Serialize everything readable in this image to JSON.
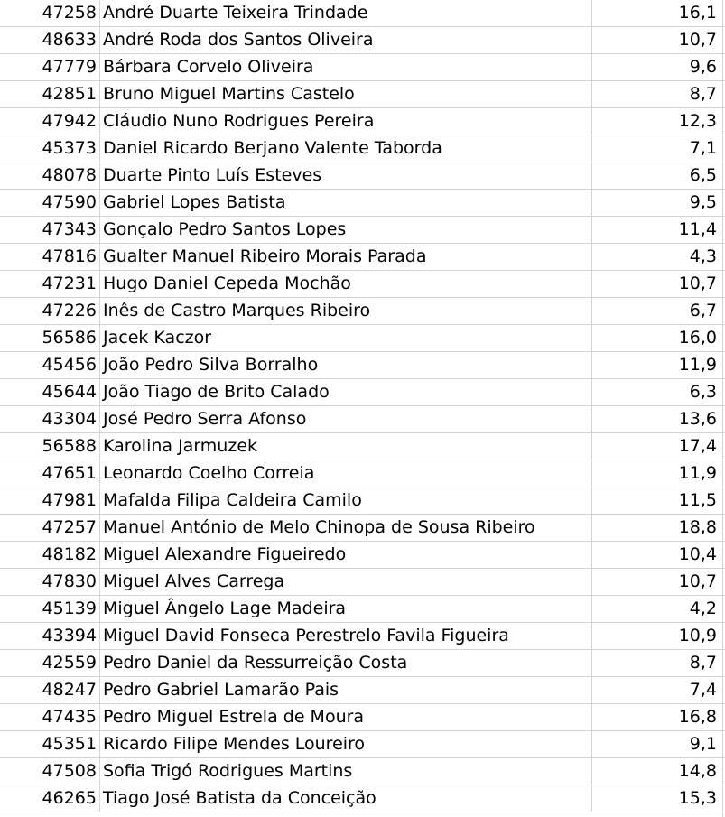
{
  "rows": [
    {
      "id": "47258",
      "name": "André Duarte Teixeira Trindade",
      "grade": "16,1"
    },
    {
      "id": "48633",
      "name": "André Roda dos Santos Oliveira",
      "grade": "10,7"
    },
    {
      "id": "47779",
      "name": "Bárbara Corvelo Oliveira",
      "grade": "9,6"
    },
    {
      "id": "42851",
      "name": "Bruno Miguel Martins Castelo",
      "grade": "8,7"
    },
    {
      "id": "47942",
      "name": "Cláudio Nuno Rodrigues Pereira",
      "grade": "12,3"
    },
    {
      "id": "45373",
      "name": "Daniel Ricardo Berjano Valente Taborda",
      "grade": "7,1"
    },
    {
      "id": "48078",
      "name": "Duarte Pinto Luís Esteves",
      "grade": "6,5"
    },
    {
      "id": "47590",
      "name": "Gabriel Lopes Batista",
      "grade": "9,5"
    },
    {
      "id": "47343",
      "name": "Gonçalo Pedro Santos Lopes",
      "grade": "11,4"
    },
    {
      "id": "47816",
      "name": "Gualter Manuel Ribeiro Morais Parada",
      "grade": "4,3"
    },
    {
      "id": "47231",
      "name": "Hugo Daniel Cepeda Mochão",
      "grade": "10,7"
    },
    {
      "id": "47226",
      "name": "Inês de Castro Marques Ribeiro",
      "grade": "6,7"
    },
    {
      "id": "56586",
      "name": "Jacek Kaczor",
      "grade": "16,0"
    },
    {
      "id": "45456",
      "name": "João Pedro Silva Borralho",
      "grade": "11,9"
    },
    {
      "id": "45644",
      "name": "João Tiago de Brito Calado",
      "grade": "6,3"
    },
    {
      "id": "43304",
      "name": "José Pedro Serra Afonso",
      "grade": "13,6"
    },
    {
      "id": "56588",
      "name": "Karolina Jarmuzek",
      "grade": "17,4"
    },
    {
      "id": "47651",
      "name": "Leonardo Coelho Correia",
      "grade": "11,9"
    },
    {
      "id": "47981",
      "name": "Mafalda Filipa Caldeira Camilo",
      "grade": "11,5"
    },
    {
      "id": "47257",
      "name": "Manuel António de Melo Chinopa de Sousa Ribeiro",
      "grade": "18,8"
    },
    {
      "id": "48182",
      "name": "Miguel Alexandre Figueiredo",
      "grade": "10,4"
    },
    {
      "id": "47830",
      "name": "Miguel Alves Carrega",
      "grade": "10,7"
    },
    {
      "id": "45139",
      "name": "Miguel Ângelo Lage Madeira",
      "grade": "4,2"
    },
    {
      "id": "43394",
      "name": "Miguel David Fonseca Perestrelo Favila Figueira",
      "grade": "10,9"
    },
    {
      "id": "42559",
      "name": "Pedro Daniel da Ressurreição Costa",
      "grade": "8,7"
    },
    {
      "id": "48247",
      "name": "Pedro Gabriel Lamarão Pais",
      "grade": "7,4"
    },
    {
      "id": "47435",
      "name": "Pedro Miguel Estrela de Moura",
      "grade": "16,8"
    },
    {
      "id": "45351",
      "name": "Ricardo Filipe Mendes Loureiro",
      "grade": "9,1"
    },
    {
      "id": "47508",
      "name": "Sofia Trigó Rodrigues Martins",
      "grade": "14,8"
    },
    {
      "id": "46265",
      "name": "Tiago José Batista da Conceição",
      "grade": "15,3"
    }
  ]
}
